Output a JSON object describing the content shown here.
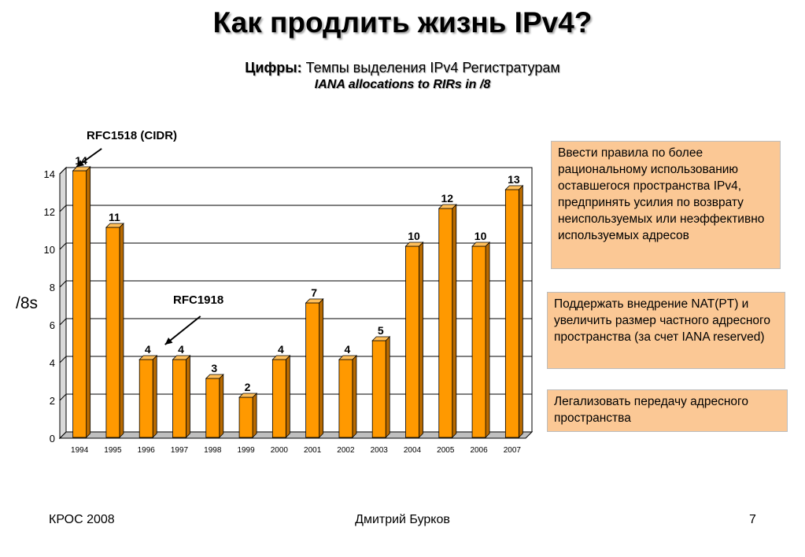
{
  "slide": {
    "title": "Как продлить жизнь IPv4?",
    "subtitle_bold": "Цифры:",
    "subtitle_text": " Темпы выделения IPv4 Регистратурам",
    "subtitle2": "IANA allocations to RIRs in /8"
  },
  "chart_data": {
    "type": "bar",
    "categories": [
      "1994",
      "1995",
      "1996",
      "1997",
      "1998",
      "1999",
      "2000",
      "2001",
      "2002",
      "2003",
      "2004",
      "2005",
      "2006",
      "2007"
    ],
    "values": [
      14,
      11,
      4,
      4,
      3,
      2,
      4,
      7,
      4,
      5,
      10,
      12,
      10,
      13
    ],
    "ylabel": "/8s",
    "ylim": [
      0,
      14
    ],
    "yticks": [
      0,
      2,
      4,
      6,
      8,
      10,
      12,
      14
    ],
    "grid": true,
    "bar_color": "#ff9900",
    "annotations": [
      {
        "text": "RFC1518 (CIDR)",
        "category": "1994"
      },
      {
        "text": "RFC1918",
        "category": "1996"
      }
    ]
  },
  "boxes": [
    "Ввести правила по более рациональному использованию оставшегося пространства IPv4, предпринять усилия по возврату неиспользуемых или неэффективно используемых адресов",
    "Поддержать внедрение NAT(PT) и увеличить размер частного адресного пространства (за счет IANA reserved)",
    "Легализовать передачу адресного пространства"
  ],
  "footer": {
    "left": "КРОС 2008",
    "center": "Дмитрий Бурков",
    "right": "7"
  },
  "colors": {
    "bar_front": "#ff9900",
    "bar_side": "#b86a00",
    "bar_top": "#ffbf5a",
    "box_fill": "#fbc895"
  }
}
